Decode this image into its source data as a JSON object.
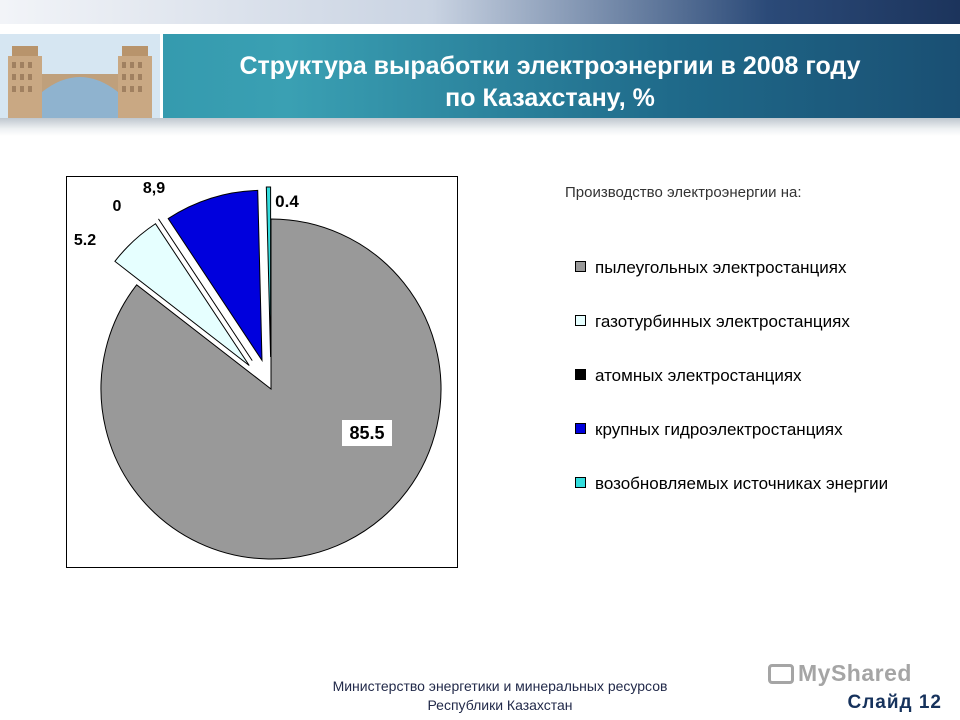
{
  "header": {
    "title_line1": "Структура выработки электроэнергии в 2008 году",
    "title_line2": "по Казахстану, %"
  },
  "chart_data": {
    "type": "pie",
    "categories": [
      "пылеугольных электростанциях",
      "газотурбинных электростанциях",
      "атомных электростанциях",
      "крупных гидроэлектростанциях",
      "возобновляемых источниках энергии"
    ],
    "values": [
      85.5,
      5.2,
      0,
      8.9,
      0.4
    ],
    "data_labels": [
      "85.5",
      "5.2",
      "0",
      "8,9",
      "0.4"
    ],
    "colors": [
      "#999999",
      "#e6ffff",
      "#000000",
      "#0000dd",
      "#33dddd"
    ],
    "legend_title": "Производство электроэнергии на:",
    "legend_placement": "right",
    "exploded": true
  },
  "footer": {
    "line1": "Министерство энергетики и минеральных ресурсов",
    "line2": "Республики Казахстан",
    "slide": "Слайд 12"
  },
  "watermark": {
    "text": "MyShared"
  }
}
